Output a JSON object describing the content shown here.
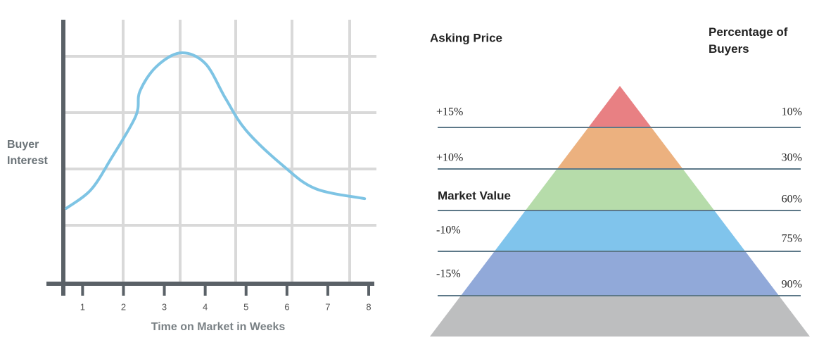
{
  "chart_data": {
    "type": "line",
    "y_label": "Buyer Interest",
    "x_label": "Time on Market in Weeks",
    "x": [
      0.6,
      1.2,
      1.7,
      2.3,
      2.4,
      2.8,
      3.4,
      4.0,
      4.5,
      5.0,
      5.9,
      6.7,
      7.9
    ],
    "series": [
      {
        "color": "#7ec4e4",
        "values": [
          28.7,
          35.7,
          47.7,
          63.8,
          73.2,
          82.6,
          87.9,
          83.9,
          70.5,
          58.4,
          45.0,
          36.2,
          32.4
        ]
      }
    ],
    "xlim": [
      0.15,
      8.1
    ],
    "xticks": [
      1,
      2,
      3,
      4,
      5,
      6,
      7,
      8
    ],
    "ylim": [
      0,
      100
    ]
  },
  "pyramid": {
    "left_header": "Asking Price",
    "right_header": "Percentage of Buyers",
    "rows": [
      {
        "price": "+15%",
        "buyers": "10%",
        "color": "#e88083"
      },
      {
        "price": "+10%",
        "buyers": "30%",
        "color": "#ecb17f"
      },
      {
        "price": "Market Value",
        "buyers": "60%",
        "color": "#b6dcaa"
      },
      {
        "price": "-10%",
        "buyers": "75%",
        "color": "#80c4ec"
      },
      {
        "price": "-15%",
        "buyers": "90%",
        "color": "#91a9d9"
      }
    ],
    "base_color": "#bdbebf"
  }
}
